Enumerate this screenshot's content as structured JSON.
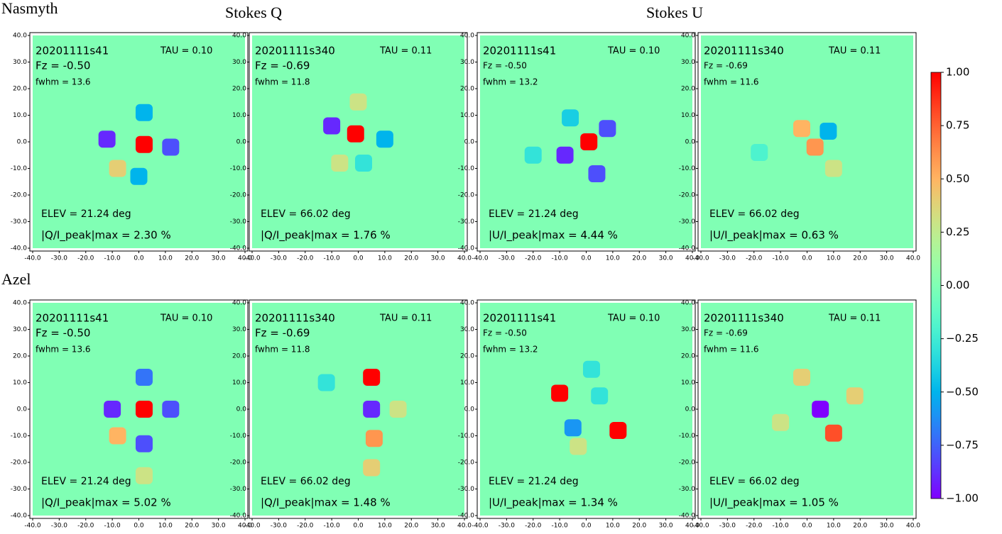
{
  "figure": {
    "row_labels": [
      "Nasmyth",
      "Azel"
    ],
    "column_labels": [
      "Stokes Q",
      "Stokes U"
    ],
    "colorbar": {
      "lim": [
        -1,
        1
      ],
      "ticks": [
        {
          "value": 1,
          "label": "1.00"
        },
        {
          "value": 0.75,
          "label": "0.75"
        },
        {
          "value": 0.5,
          "label": "0.50"
        },
        {
          "value": 0.25,
          "label": "0.25"
        },
        {
          "value": 0,
          "label": "0.00"
        },
        {
          "value": -0.25,
          "label": "−0.25"
        },
        {
          "value": -0.5,
          "label": "−0.50"
        },
        {
          "value": -0.75,
          "label": "−0.75"
        },
        {
          "value": -1,
          "label": "−1.00"
        }
      ]
    },
    "xlim": [
      -40,
      40
    ],
    "ylim": [
      -40,
      40
    ],
    "ticks": [
      {
        "value": -40,
        "label": "-40.0"
      },
      {
        "value": -30,
        "label": "-30.0"
      },
      {
        "value": -20,
        "label": "-20.0"
      },
      {
        "value": -10,
        "label": "-10.0"
      },
      {
        "value": 0,
        "label": "0.0"
      },
      {
        "value": 10,
        "label": "10.0"
      },
      {
        "value": 20,
        "label": "20.0"
      },
      {
        "value": 30,
        "label": "30.0"
      },
      {
        "value": 40,
        "label": "40.0"
      }
    ]
  },
  "chart_data": [
    {
      "type": "heatmap",
      "scan": "20201111s41",
      "tau": "TAU = 0.10",
      "fz": "Fz = -0.50",
      "fwhm": "fwhm = 13.6",
      "elev": "ELEV = 21.24 deg",
      "peak": "|Q/I_peak|max = 2.30 %",
      "points": [
        {
          "x": 2,
          "y": -1,
          "value": 1
        },
        {
          "x": -12,
          "y": 1,
          "value": -0.9
        },
        {
          "x": 12,
          "y": -2,
          "value": -0.8
        },
        {
          "x": 2,
          "y": 11,
          "value": -0.5
        },
        {
          "x": 0,
          "y": -13,
          "value": -0.5
        },
        {
          "x": -8,
          "y": -10,
          "value": 0.4
        }
      ]
    },
    {
      "type": "heatmap",
      "scan": "20201111s340",
      "tau": "TAU = 0.11",
      "fz": "Fz = -0.69",
      "fwhm": "fwhm = 11.8",
      "elev": "ELEV = 66.02 deg",
      "peak": "|Q/I_peak|max = 1.76 %",
      "points": [
        {
          "x": -1,
          "y": 3,
          "value": 1
        },
        {
          "x": -10,
          "y": 6,
          "value": -0.9
        },
        {
          "x": 10,
          "y": 1,
          "value": -0.5
        },
        {
          "x": 2,
          "y": -8,
          "value": -0.3
        },
        {
          "x": -7,
          "y": -8,
          "value": 0.3
        },
        {
          "x": 0,
          "y": 15,
          "value": 0.3
        }
      ]
    },
    {
      "type": "heatmap",
      "scan": "20201111s41",
      "tau": "TAU = 0.10",
      "fz": "Fz = -0.50",
      "fwhm": "fwhm = 13.2",
      "elev": "ELEV = 21.24 deg",
      "peak": "|U/I_peak|max = 4.44 %",
      "points": [
        {
          "x": 1,
          "y": 0,
          "value": 1
        },
        {
          "x": -8,
          "y": -5,
          "value": -0.9
        },
        {
          "x": 8,
          "y": 5,
          "value": -0.8
        },
        {
          "x": 4,
          "y": -12,
          "value": -0.8
        },
        {
          "x": -6,
          "y": 9,
          "value": -0.4
        },
        {
          "x": -20,
          "y": -5,
          "value": -0.3
        }
      ]
    },
    {
      "type": "heatmap",
      "scan": "20201111s340",
      "tau": "TAU = 0.11",
      "fz": "Fz = -0.69",
      "fwhm": "fwhm = 11.6",
      "elev": "ELEV = 66.02 deg",
      "peak": "|U/I_peak|max = 0.63 %",
      "points": [
        {
          "x": -2,
          "y": 5,
          "value": 0.5
        },
        {
          "x": 3,
          "y": -2,
          "value": 0.6
        },
        {
          "x": 8,
          "y": 4,
          "value": -0.5
        },
        {
          "x": 10,
          "y": -10,
          "value": 0.3
        },
        {
          "x": -18,
          "y": -4,
          "value": -0.2
        }
      ]
    },
    {
      "type": "heatmap",
      "scan": "20201111s41",
      "tau": "TAU = 0.10",
      "fz": "Fz = -0.50",
      "fwhm": "fwhm = 13.6",
      "elev": "ELEV = 21.24 deg",
      "peak": "|Q/I_peak|max = 5.02 %",
      "points": [
        {
          "x": 2,
          "y": 0,
          "value": 1
        },
        {
          "x": -10,
          "y": 0,
          "value": -0.9
        },
        {
          "x": 12,
          "y": 0,
          "value": -0.8
        },
        {
          "x": 2,
          "y": 12,
          "value": -0.7
        },
        {
          "x": 2,
          "y": -13,
          "value": -0.8
        },
        {
          "x": -8,
          "y": -10,
          "value": 0.5
        },
        {
          "x": 2,
          "y": -25,
          "value": 0.3
        }
      ]
    },
    {
      "type": "heatmap",
      "scan": "20201111s340",
      "tau": "TAU = 0.11",
      "fz": "Fz = -0.69",
      "fwhm": "fwhm = 11.8",
      "elev": "ELEV = 66.02 deg",
      "peak": "|Q/I_peak|max = 1.48 %",
      "points": [
        {
          "x": 5,
          "y": 12,
          "value": 1
        },
        {
          "x": 5,
          "y": 0,
          "value": -0.9
        },
        {
          "x": 6,
          "y": -11,
          "value": 0.6
        },
        {
          "x": 5,
          "y": -22,
          "value": 0.4
        },
        {
          "x": -12,
          "y": 10,
          "value": -0.3
        },
        {
          "x": 15,
          "y": 0,
          "value": 0.3
        }
      ]
    },
    {
      "type": "heatmap",
      "scan": "20201111s41",
      "tau": "TAU = 0.10",
      "fz": "Fz = -0.50",
      "fwhm": "fwhm = 13.2",
      "elev": "ELEV = 21.24 deg",
      "peak": "|U/I_peak|max = 1.34 %",
      "points": [
        {
          "x": -10,
          "y": 6,
          "value": 1
        },
        {
          "x": 12,
          "y": -8,
          "value": 1
        },
        {
          "x": -5,
          "y": -7,
          "value": -0.6
        },
        {
          "x": 5,
          "y": 5,
          "value": -0.3
        },
        {
          "x": 2,
          "y": 15,
          "value": -0.3
        },
        {
          "x": -3,
          "y": -14,
          "value": 0.3
        }
      ]
    },
    {
      "type": "heatmap",
      "scan": "20201111s340",
      "tau": "TAU = 0.11",
      "fz": "Fz = -0.69",
      "fwhm": "fwhm = 11.6",
      "elev": "ELEV = 66.02 deg",
      "peak": "|U/I_peak|max = 1.05 %",
      "points": [
        {
          "x": 5,
          "y": 0,
          "value": -1
        },
        {
          "x": 10,
          "y": -9,
          "value": 0.8
        },
        {
          "x": -2,
          "y": 12,
          "value": 0.4
        },
        {
          "x": 18,
          "y": 5,
          "value": 0.4
        },
        {
          "x": -10,
          "y": -5,
          "value": 0.3
        }
      ]
    }
  ]
}
